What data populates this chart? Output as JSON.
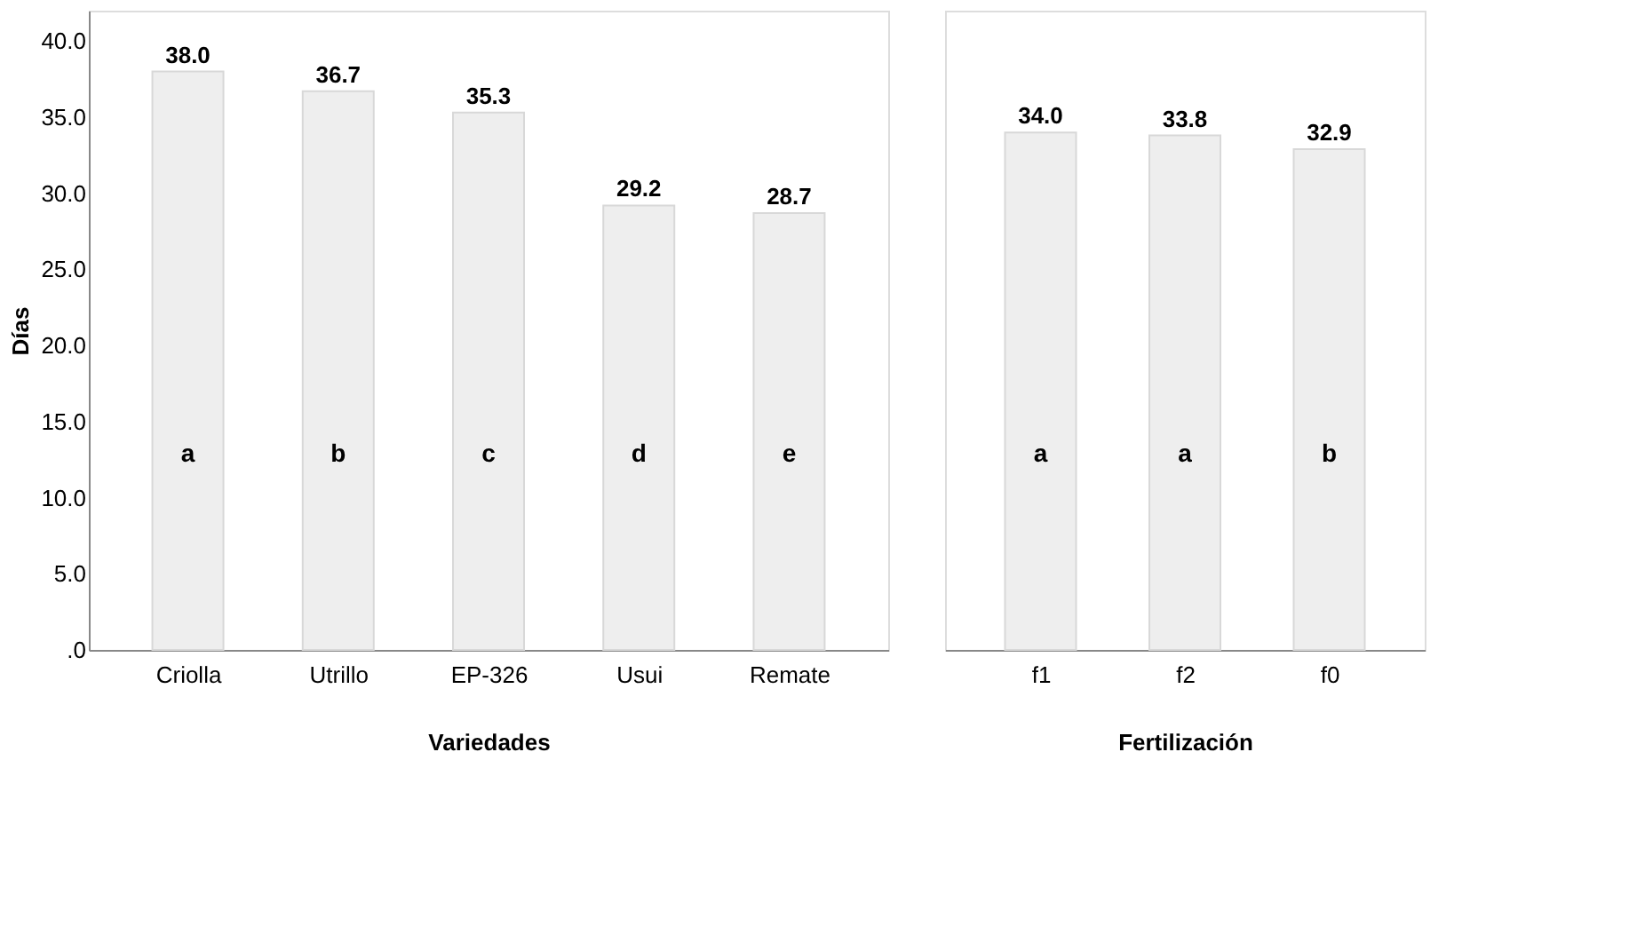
{
  "chart_data": [
    {
      "type": "bar",
      "xlabel": "Variedades",
      "ylabel": "Días",
      "categories": [
        "Criolla",
        "Utrillo",
        "EP-326",
        "Usui",
        "Remate"
      ],
      "values": [
        38.0,
        36.7,
        35.3,
        29.2,
        28.7
      ],
      "value_labels": [
        "38.0",
        "36.7",
        "35.3",
        "29.2",
        "28.7"
      ],
      "color": "#eeeeee",
      "ylim": [
        0,
        42
      ],
      "yticks": [
        {
          "value": 0,
          "label": ".0"
        },
        {
          "value": 5,
          "label": "5.0"
        },
        {
          "value": 10,
          "label": "10.0"
        },
        {
          "value": 15,
          "label": "15.0"
        },
        {
          "value": 20,
          "label": "20.0"
        },
        {
          "value": 25,
          "label": "25.0"
        },
        {
          "value": 30,
          "label": "30.0"
        },
        {
          "value": 35,
          "label": "35.0"
        },
        {
          "value": 40,
          "label": "40.0"
        }
      ],
      "annotations": [
        "a",
        "b",
        "c",
        "d",
        "e"
      ]
    },
    {
      "type": "bar",
      "xlabel": "Fertilización",
      "categories": [
        "f1",
        "f2",
        "f0"
      ],
      "values": [
        34.0,
        33.8,
        32.9
      ],
      "value_labels": [
        "34.0",
        "33.8",
        "32.9"
      ],
      "color": "#eeeeee",
      "ylim": [
        0,
        42
      ],
      "tick_labels": "x",
      "annotations": [
        "a",
        "a",
        "b"
      ]
    }
  ]
}
